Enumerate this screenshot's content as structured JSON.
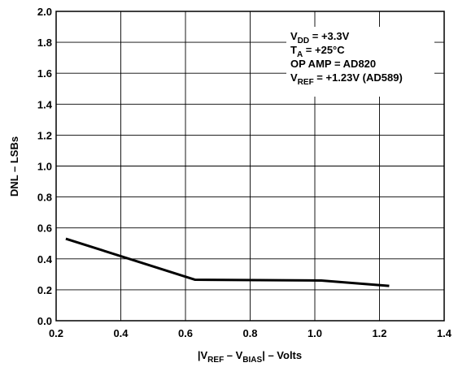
{
  "chart_data": {
    "type": "line",
    "xlabel_parts": [
      "|V",
      "REF",
      " – V",
      "BIAS",
      "| – Volts"
    ],
    "ylabel": "DNL – LSBs",
    "xlim": [
      0.2,
      1.4
    ],
    "ylim": [
      0.0,
      2.0
    ],
    "x_ticks": [
      "0.2",
      "0.4",
      "0.6",
      "0.8",
      "1.0",
      "1.2",
      "1.4"
    ],
    "y_ticks": [
      "0.0",
      "0.2",
      "0.4",
      "0.6",
      "0.8",
      "1.0",
      "1.2",
      "1.4",
      "1.6",
      "1.8",
      "2.0"
    ],
    "grid": true,
    "series": [
      {
        "x": [
          0.23,
          0.63,
          1.02,
          1.23
        ],
        "y": [
          0.53,
          0.265,
          0.26,
          0.225
        ]
      }
    ],
    "annotations": [
      {
        "parts": [
          "V",
          "DD",
          " = +3.3V"
        ]
      },
      {
        "parts": [
          "T",
          "A",
          " = +25°C"
        ]
      },
      {
        "parts": [
          "OP AMP = AD820",
          "",
          ""
        ]
      },
      {
        "parts": [
          "V",
          "REF",
          " = +1.23V (AD589)"
        ]
      }
    ],
    "colors": {
      "line": "#000000",
      "grid": "#000000",
      "background": "#ffffff"
    }
  }
}
